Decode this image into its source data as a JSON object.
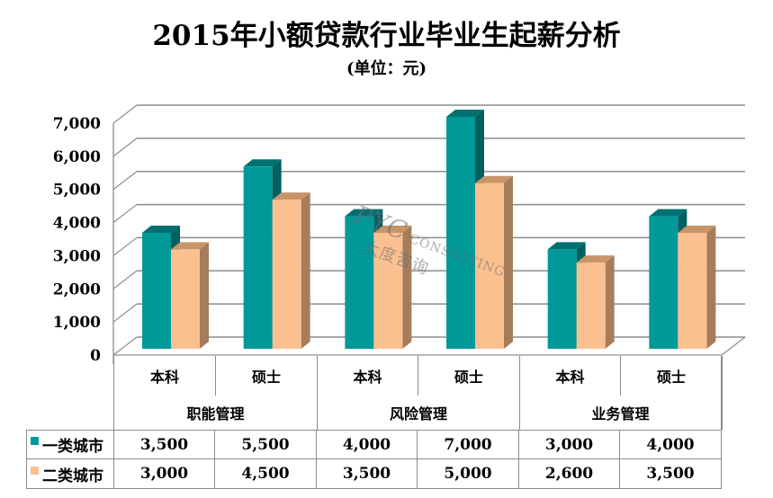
{
  "header": {
    "title": "2015年小额贷款行业毕业生起薪分析",
    "subtitle": "(单位：元)"
  },
  "chart_data": {
    "type": "bar",
    "style": "3d-clustered-column",
    "title": "2015年小额贷款行业毕业生起薪分析",
    "subtitle": "(单位：元)",
    "xlabel": "",
    "ylabel": "",
    "ylim": [
      0,
      7000
    ],
    "yticks": [
      "0",
      "1,000",
      "2,000",
      "3,000",
      "4,000",
      "5,000",
      "6,000",
      "7,000"
    ],
    "grid": true,
    "legend_position": "data-table",
    "category_groups": [
      {
        "name": "职能管理",
        "categories": [
          "本科",
          "硕士"
        ]
      },
      {
        "name": "风险管理",
        "categories": [
          "本科",
          "硕士"
        ]
      },
      {
        "name": "业务管理",
        "categories": [
          "本科",
          "硕士"
        ]
      }
    ],
    "categories": [
      "职能管理-本科",
      "职能管理-硕士",
      "风险管理-本科",
      "风险管理-硕士",
      "业务管理-本科",
      "业务管理-硕士"
    ],
    "series": [
      {
        "name": "一类城市",
        "color": "#009999",
        "values": [
          3500,
          5500,
          4000,
          7000,
          3000,
          4000
        ],
        "labels": [
          "3,500",
          "5,500",
          "4,000",
          "7,000",
          "3,000",
          "4,000"
        ]
      },
      {
        "name": "二类城市",
        "color": "#FAC090",
        "values": [
          3000,
          4500,
          3500,
          5000,
          2600,
          3500
        ],
        "labels": [
          "3,000",
          "4,500",
          "3,500",
          "5,000",
          "2,600",
          "3,500"
        ]
      }
    ]
  },
  "table": {
    "sub_labels": [
      "本科",
      "硕士",
      "本科",
      "硕士",
      "本科",
      "硕士"
    ],
    "group_labels": [
      "职能管理",
      "风险管理",
      "业务管理"
    ],
    "rows": [
      {
        "legend": "一类城市",
        "values": [
          "3,500",
          "5,500",
          "4,000",
          "7,000",
          "3,000",
          "4,000"
        ]
      },
      {
        "legend": "二类城市",
        "values": [
          "3,000",
          "4,500",
          "3,500",
          "5,000",
          "2,600",
          "3,500"
        ]
      }
    ]
  },
  "colors": {
    "series1_front": "#009999",
    "series1_top": "#007070",
    "series1_side": "#006060",
    "series2_front": "#FAC090",
    "series2_top": "#C8956A",
    "series2_side": "#A67C5A",
    "grid": "#8c8c8c"
  },
  "watermark": {
    "line1": "PYC",
    "line2": "CONSULTING",
    "line3": "太度咨询"
  }
}
